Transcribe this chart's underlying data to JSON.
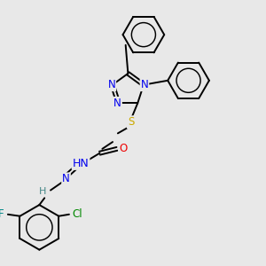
{
  "background_color": "#e8e8e8",
  "atom_colors": {
    "N": "#0000ee",
    "O": "#ee0000",
    "S": "#ccaa00",
    "F": "#008888",
    "Cl": "#008800",
    "H": "#448888",
    "C": "#000000"
  },
  "bond_color": "#000000",
  "bond_width": 1.4,
  "font_size": 8.5
}
